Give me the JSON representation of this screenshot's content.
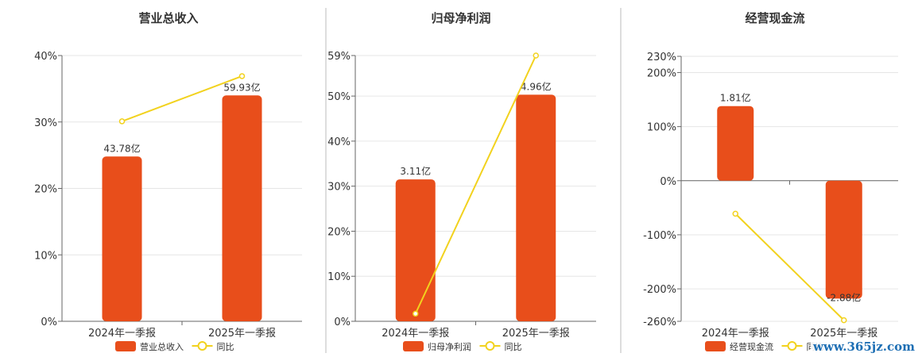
{
  "colors": {
    "bar": "#e84e1b",
    "line": "#f2d21e",
    "axis": "#666666",
    "grid": "#e6e6e6",
    "text": "#333333"
  },
  "watermark": "www.365jz.com",
  "chart_data": [
    {
      "type": "bar",
      "title": "营业总收入",
      "categories": [
        "2024年一季报",
        "2025年一季报"
      ],
      "series": [
        {
          "name": "营业总收入",
          "type": "bar",
          "values": [
            43.78,
            59.93
          ],
          "labels": [
            "43.78亿",
            "59.93亿"
          ],
          "height_pct": [
            24.8,
            34.0
          ]
        },
        {
          "name": "同比",
          "type": "line",
          "values_pct": [
            30.1,
            36.9
          ]
        }
      ],
      "y_ticks": [
        "0%",
        "10%",
        "20%",
        "30%",
        "40%"
      ],
      "ylim_pct": [
        0,
        40
      ],
      "grid": true,
      "legend": "bottom"
    },
    {
      "type": "bar",
      "title": "归母净利润",
      "categories": [
        "2024年一季报",
        "2025年一季报"
      ],
      "series": [
        {
          "name": "归母净利润",
          "type": "bar",
          "values": [
            3.11,
            4.96
          ],
          "labels": [
            "3.11亿",
            "4.96亿"
          ],
          "height_pct": [
            31.5,
            50.3
          ]
        },
        {
          "name": "同比",
          "type": "line",
          "values_pct": [
            1.7,
            59
          ]
        }
      ],
      "y_ticks": [
        "0%",
        "10%",
        "20%",
        "30%",
        "40%",
        "50%",
        "59%"
      ],
      "ylim_pct": [
        0,
        59
      ],
      "grid": true,
      "legend": "bottom"
    },
    {
      "type": "bar",
      "title": "经营现金流",
      "categories": [
        "2024年一季报",
        "2025年一季报"
      ],
      "series": [
        {
          "name": "经营现金流",
          "type": "bar",
          "values": [
            1.81,
            -2.88
          ],
          "labels": [
            "1.81亿",
            "-2.88亿"
          ],
          "height_pct": [
            138,
            -218
          ]
        },
        {
          "name": "同比",
          "type": "line",
          "values_pct": [
            -61,
            -258
          ]
        }
      ],
      "y_ticks": [
        "-260%",
        "-200%",
        "-100%",
        "0%",
        "100%",
        "200%",
        "230%"
      ],
      "ylim_pct": [
        -260,
        230
      ],
      "grid": true,
      "legend": "bottom"
    }
  ]
}
